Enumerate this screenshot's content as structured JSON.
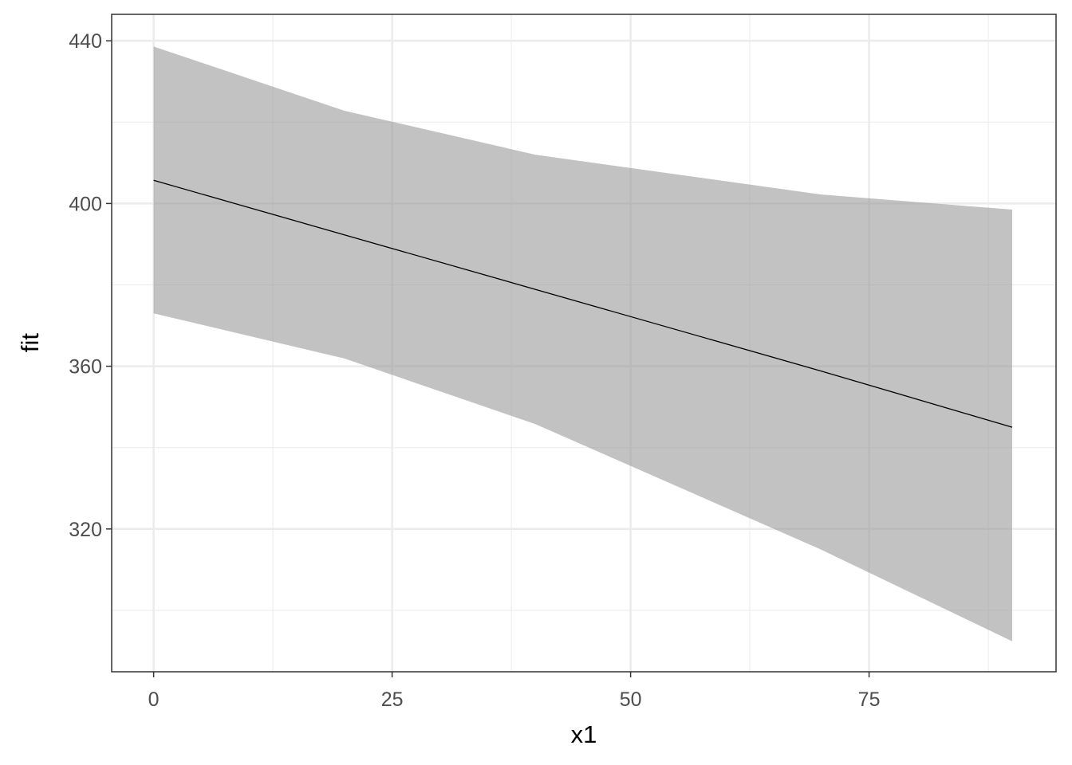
{
  "chart_data": {
    "type": "line",
    "title": "",
    "xlabel": "x1",
    "ylabel": "fit",
    "xlim": [
      -4.4,
      94.6
    ],
    "ylim": [
      284.9,
      446.5
    ],
    "x_ticks": [
      0,
      25,
      50,
      75
    ],
    "x_tick_labels": [
      "0",
      "25",
      "50",
      "75"
    ],
    "y_ticks": [
      320,
      360,
      400,
      440
    ],
    "y_tick_labels": [
      "320",
      "360",
      "400",
      "440"
    ],
    "grid": true,
    "theme": "bw",
    "series": [
      {
        "x": [
          0,
          20,
          40,
          70,
          90
        ],
        "fit": [
          405.7,
          392.3,
          378.9,
          358.8,
          345.0
        ],
        "lower": [
          373.0,
          361.9,
          345.8,
          314.9,
          292.4
        ],
        "upper": [
          438.6,
          422.8,
          412.0,
          402.2,
          398.5
        ],
        "line_color": "#000000",
        "band_color": "#999999",
        "band_opacity": 0.6
      }
    ]
  }
}
